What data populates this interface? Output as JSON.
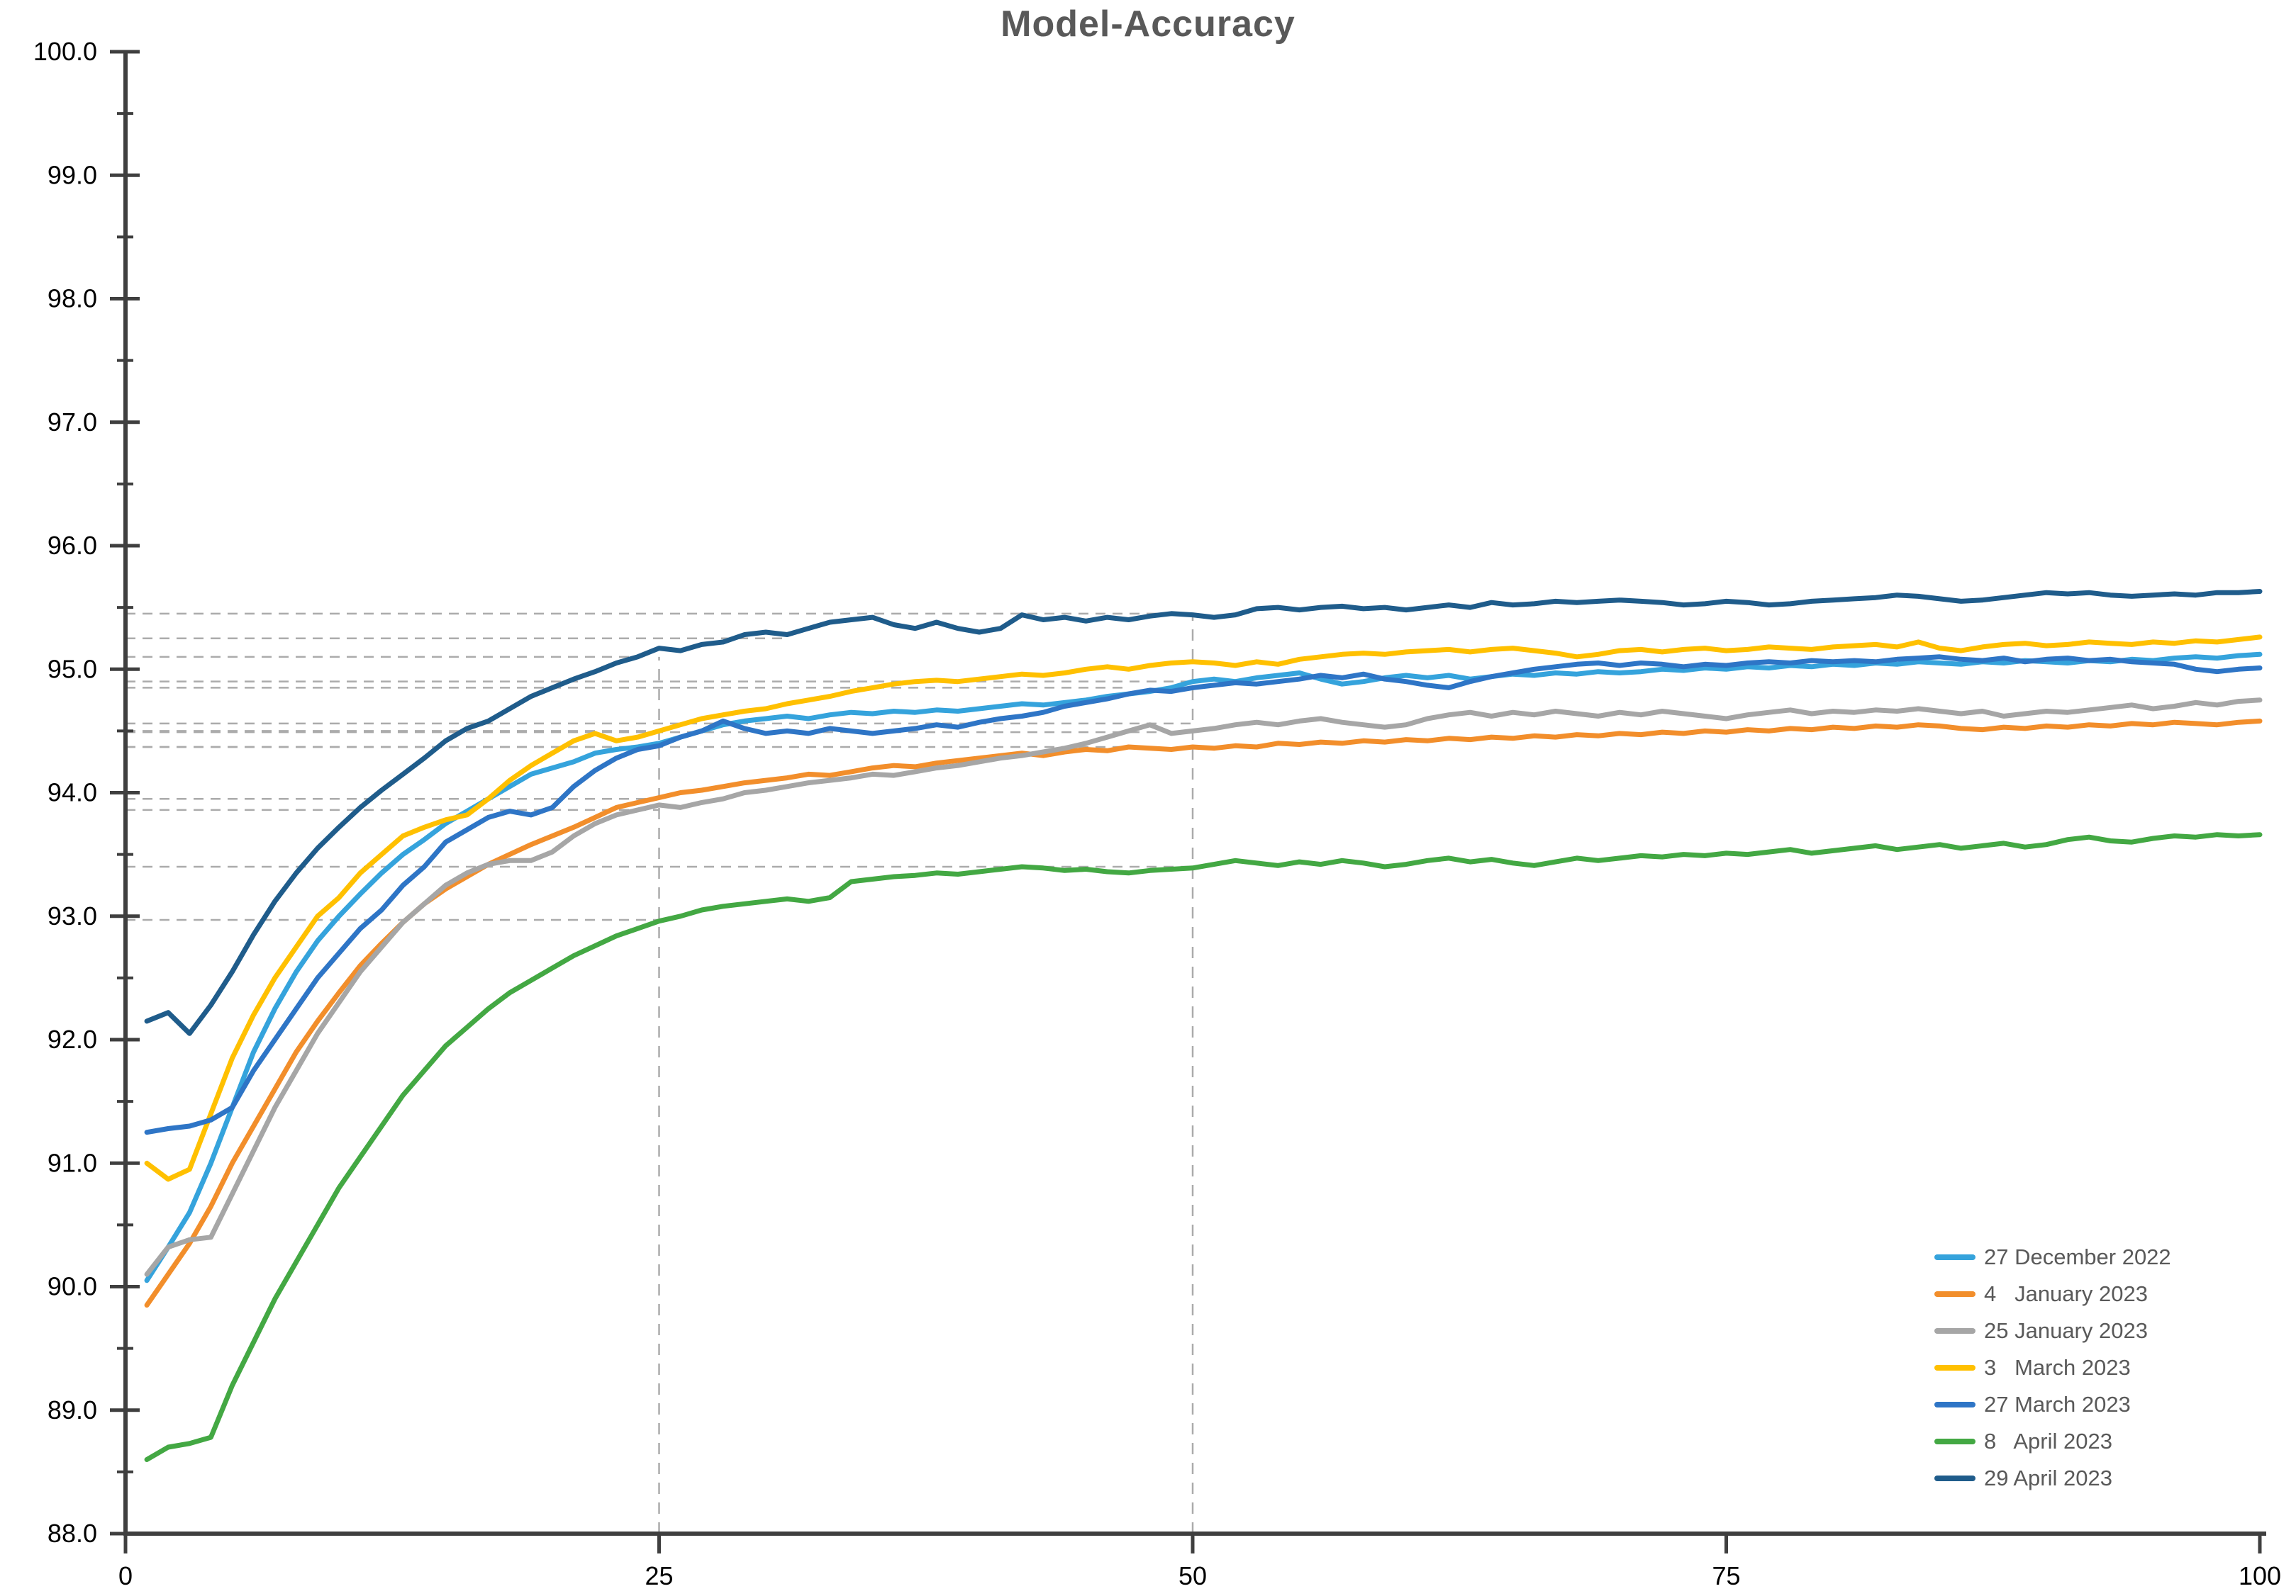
{
  "title": "Model-Accuracy",
  "chart_data": {
    "type": "line",
    "title": "Model-Accuracy",
    "xlabel": "",
    "ylabel": "",
    "xlim": [
      0,
      100
    ],
    "ylim": [
      88.0,
      100.0
    ],
    "x_ticks": [
      0,
      25,
      50,
      75,
      100
    ],
    "x_tick_labels": [
      "0",
      "25",
      "50",
      "75",
      "100"
    ],
    "y_tick_labels": [
      "100.0",
      "99.0",
      "98.0",
      "97.0",
      "96.0",
      "95.0",
      "94.0",
      "93.0",
      "92.0",
      "91.0",
      "90.0",
      "89.0",
      "88.0"
    ],
    "y_major_step": 1.0,
    "y_minor_step": 0.5,
    "grid": false,
    "legend_position": "bottom-right",
    "axis_color": "#3f3f3f",
    "tick_label_color": "#000000",
    "guide_color": "#ababab",
    "dashed_guides_horizontal": [
      {
        "y": 95.45,
        "x_end": 50
      },
      {
        "y": 95.25,
        "x_end": 31
      },
      {
        "y": 95.1,
        "x_end": 24
      },
      {
        "y": 94.9,
        "x_end": 50
      },
      {
        "y": 94.85,
        "x_end": 47
      },
      {
        "y": 94.56,
        "x_end": 50
      },
      {
        "y": 94.5,
        "x_end": 25
      },
      {
        "y": 94.49,
        "x_end": 49
      },
      {
        "y": 94.37,
        "x_end": 47
      },
      {
        "y": 94.37,
        "x_end": 25
      },
      {
        "y": 93.95,
        "x_end": 25
      },
      {
        "y": 93.86,
        "x_end": 25
      },
      {
        "y": 93.4,
        "x_end": 50
      },
      {
        "y": 92.97,
        "x_end": 25
      }
    ],
    "dashed_guides_vertical": [
      {
        "x": 25,
        "y_top": 95.1
      },
      {
        "x": 50,
        "y_top": 95.45
      }
    ],
    "x": "1..100",
    "series": [
      {
        "name": "27 December 2022",
        "color": "#35A3DC",
        "values": [
          90.05,
          90.32,
          90.6,
          91.0,
          91.45,
          91.9,
          92.25,
          92.55,
          92.8,
          93.0,
          93.18,
          93.35,
          93.5,
          93.62,
          93.75,
          93.85,
          93.95,
          94.05,
          94.15,
          94.2,
          94.25,
          94.32,
          94.35,
          94.37,
          94.4,
          94.45,
          94.5,
          94.55,
          94.58,
          94.6,
          94.62,
          94.6,
          94.63,
          94.65,
          94.64,
          94.66,
          94.65,
          94.67,
          94.66,
          94.68,
          94.7,
          94.72,
          94.71,
          94.73,
          94.75,
          94.78,
          94.8,
          94.82,
          94.85,
          94.9,
          94.92,
          94.9,
          94.93,
          94.95,
          94.97,
          94.92,
          94.88,
          94.9,
          94.93,
          94.95,
          94.93,
          94.95,
          94.92,
          94.94,
          94.96,
          94.95,
          94.97,
          94.96,
          94.98,
          94.97,
          94.98,
          95.0,
          94.99,
          95.01,
          95.0,
          95.02,
          95.01,
          95.03,
          95.02,
          95.04,
          95.03,
          95.05,
          95.04,
          95.06,
          95.05,
          95.04,
          95.06,
          95.05,
          95.07,
          95.06,
          95.05,
          95.07,
          95.06,
          95.08,
          95.07,
          95.09,
          95.1,
          95.09,
          95.11,
          95.12
        ]
      },
      {
        "name": "4   January 2023",
        "color": "#F28E2B",
        "values": [
          89.85,
          90.1,
          90.35,
          90.65,
          91.0,
          91.3,
          91.6,
          91.9,
          92.15,
          92.38,
          92.6,
          92.78,
          92.95,
          93.1,
          93.22,
          93.32,
          93.42,
          93.5,
          93.58,
          93.65,
          93.72,
          93.8,
          93.88,
          93.92,
          93.96,
          94.0,
          94.02,
          94.05,
          94.08,
          94.1,
          94.12,
          94.15,
          94.14,
          94.17,
          94.2,
          94.22,
          94.21,
          94.24,
          94.26,
          94.28,
          94.3,
          94.32,
          94.3,
          94.33,
          94.35,
          94.34,
          94.37,
          94.36,
          94.35,
          94.37,
          94.36,
          94.38,
          94.37,
          94.4,
          94.39,
          94.41,
          94.4,
          94.42,
          94.41,
          94.43,
          94.42,
          94.44,
          94.43,
          94.45,
          94.44,
          94.46,
          94.45,
          94.47,
          94.46,
          94.48,
          94.47,
          94.49,
          94.48,
          94.5,
          94.49,
          94.51,
          94.5,
          94.52,
          94.51,
          94.53,
          94.52,
          94.54,
          94.53,
          94.55,
          94.54,
          94.52,
          94.51,
          94.53,
          94.52,
          94.54,
          94.53,
          94.55,
          94.54,
          94.56,
          94.55,
          94.57,
          94.56,
          94.55,
          94.57,
          94.58
        ]
      },
      {
        "name": "25 January 2023",
        "color": "#A6A6A6",
        "values": [
          90.1,
          90.32,
          90.38,
          90.4,
          90.75,
          91.1,
          91.45,
          91.75,
          92.05,
          92.3,
          92.55,
          92.75,
          92.95,
          93.1,
          93.25,
          93.35,
          93.42,
          93.45,
          93.45,
          93.52,
          93.65,
          93.75,
          93.82,
          93.86,
          93.9,
          93.88,
          93.92,
          93.95,
          94.0,
          94.02,
          94.05,
          94.08,
          94.1,
          94.12,
          94.15,
          94.14,
          94.17,
          94.2,
          94.22,
          94.25,
          94.28,
          94.3,
          94.33,
          94.36,
          94.4,
          94.45,
          94.5,
          94.55,
          94.48,
          94.5,
          94.52,
          94.55,
          94.57,
          94.55,
          94.58,
          94.6,
          94.57,
          94.55,
          94.53,
          94.55,
          94.6,
          94.63,
          94.65,
          94.62,
          94.65,
          94.63,
          94.66,
          94.64,
          94.62,
          94.65,
          94.63,
          94.66,
          94.64,
          94.62,
          94.6,
          94.63,
          94.65,
          94.67,
          94.64,
          94.66,
          94.65,
          94.67,
          94.66,
          94.68,
          94.66,
          94.64,
          94.66,
          94.62,
          94.64,
          94.66,
          94.65,
          94.67,
          94.69,
          94.71,
          94.68,
          94.7,
          94.73,
          94.71,
          94.74,
          94.75
        ]
      },
      {
        "name": "3   March 2023",
        "color": "#FFC000",
        "values": [
          91.0,
          90.87,
          90.95,
          91.4,
          91.85,
          92.2,
          92.5,
          92.75,
          93.0,
          93.15,
          93.35,
          93.5,
          93.65,
          93.72,
          93.78,
          93.82,
          93.95,
          94.1,
          94.22,
          94.32,
          94.42,
          94.48,
          94.42,
          94.45,
          94.5,
          94.55,
          94.6,
          94.63,
          94.66,
          94.68,
          94.72,
          94.75,
          94.78,
          94.82,
          94.85,
          94.88,
          94.9,
          94.91,
          94.9,
          94.92,
          94.94,
          94.96,
          94.95,
          94.97,
          95.0,
          95.02,
          95.0,
          95.03,
          95.05,
          95.06,
          95.05,
          95.03,
          95.06,
          95.04,
          95.08,
          95.1,
          95.12,
          95.13,
          95.12,
          95.14,
          95.15,
          95.16,
          95.14,
          95.16,
          95.17,
          95.15,
          95.13,
          95.1,
          95.12,
          95.15,
          95.16,
          95.14,
          95.16,
          95.17,
          95.15,
          95.16,
          95.18,
          95.17,
          95.16,
          95.18,
          95.19,
          95.2,
          95.18,
          95.22,
          95.17,
          95.15,
          95.18,
          95.2,
          95.21,
          95.19,
          95.2,
          95.22,
          95.21,
          95.2,
          95.22,
          95.21,
          95.23,
          95.22,
          95.24,
          95.26
        ]
      },
      {
        "name": "27 March 2023",
        "color": "#2E75C6",
        "values": [
          91.25,
          91.28,
          91.3,
          91.35,
          91.45,
          91.75,
          92.0,
          92.25,
          92.5,
          92.7,
          92.9,
          93.05,
          93.25,
          93.4,
          93.6,
          93.7,
          93.8,
          93.85,
          93.82,
          93.88,
          94.05,
          94.18,
          94.28,
          94.35,
          94.38,
          94.45,
          94.5,
          94.58,
          94.52,
          94.48,
          94.5,
          94.48,
          94.52,
          94.5,
          94.48,
          94.5,
          94.52,
          94.55,
          94.53,
          94.57,
          94.6,
          94.62,
          94.65,
          94.7,
          94.73,
          94.76,
          94.8,
          94.83,
          94.82,
          94.85,
          94.87,
          94.89,
          94.88,
          94.9,
          94.92,
          94.95,
          94.93,
          94.96,
          94.92,
          94.9,
          94.87,
          94.85,
          94.9,
          94.94,
          94.97,
          95.0,
          95.02,
          95.04,
          95.05,
          95.03,
          95.05,
          95.04,
          95.02,
          95.04,
          95.03,
          95.05,
          95.06,
          95.05,
          95.07,
          95.06,
          95.07,
          95.06,
          95.08,
          95.09,
          95.1,
          95.08,
          95.07,
          95.09,
          95.06,
          95.08,
          95.09,
          95.07,
          95.08,
          95.06,
          95.05,
          95.04,
          95.0,
          94.98,
          95.0,
          95.01
        ]
      },
      {
        "name": "8   April 2023",
        "color": "#43A843",
        "values": [
          88.6,
          88.7,
          88.73,
          88.78,
          89.2,
          89.55,
          89.9,
          90.2,
          90.5,
          90.8,
          91.05,
          91.3,
          91.55,
          91.75,
          91.95,
          92.1,
          92.25,
          92.38,
          92.48,
          92.58,
          92.68,
          92.76,
          92.84,
          92.9,
          92.96,
          93.0,
          93.05,
          93.08,
          93.1,
          93.12,
          93.14,
          93.12,
          93.15,
          93.28,
          93.3,
          93.32,
          93.33,
          93.35,
          93.34,
          93.36,
          93.38,
          93.4,
          93.39,
          93.37,
          93.38,
          93.36,
          93.35,
          93.37,
          93.38,
          93.39,
          93.42,
          93.45,
          93.43,
          93.41,
          93.44,
          93.42,
          93.45,
          93.43,
          93.4,
          93.42,
          93.45,
          93.47,
          93.44,
          93.46,
          93.43,
          93.41,
          93.44,
          93.47,
          93.45,
          93.47,
          93.49,
          93.48,
          93.5,
          93.49,
          93.51,
          93.5,
          93.52,
          93.54,
          93.51,
          93.53,
          93.55,
          93.57,
          93.54,
          93.56,
          93.58,
          93.55,
          93.57,
          93.59,
          93.56,
          93.58,
          93.62,
          93.64,
          93.61,
          93.6,
          93.63,
          93.65,
          93.64,
          93.66,
          93.65,
          93.66
        ]
      },
      {
        "name": "29 April 2023",
        "color": "#1F5C8B",
        "values": [
          92.15,
          92.22,
          92.05,
          92.28,
          92.55,
          92.85,
          93.12,
          93.35,
          93.55,
          93.72,
          93.88,
          94.02,
          94.15,
          94.28,
          94.42,
          94.52,
          94.58,
          94.68,
          94.78,
          94.85,
          94.92,
          94.98,
          95.05,
          95.1,
          95.17,
          95.15,
          95.2,
          95.22,
          95.28,
          95.3,
          95.28,
          95.33,
          95.38,
          95.4,
          95.42,
          95.36,
          95.33,
          95.38,
          95.33,
          95.3,
          95.33,
          95.44,
          95.4,
          95.42,
          95.39,
          95.42,
          95.4,
          95.43,
          95.45,
          95.44,
          95.42,
          95.44,
          95.49,
          95.5,
          95.48,
          95.5,
          95.51,
          95.49,
          95.5,
          95.48,
          95.5,
          95.52,
          95.5,
          95.54,
          95.52,
          95.53,
          95.55,
          95.54,
          95.55,
          95.56,
          95.55,
          95.54,
          95.52,
          95.53,
          95.55,
          95.54,
          95.52,
          95.53,
          95.55,
          95.56,
          95.57,
          95.58,
          95.6,
          95.59,
          95.57,
          95.55,
          95.56,
          95.58,
          95.6,
          95.62,
          95.61,
          95.62,
          95.6,
          95.59,
          95.6,
          95.61,
          95.6,
          95.62,
          95.62,
          95.63
        ]
      }
    ]
  },
  "legend": {
    "items": [
      {
        "label": "27 December 2022"
      },
      {
        "label": "4   January 2023"
      },
      {
        "label": "25 January 2023"
      },
      {
        "label": "3   March 2023"
      },
      {
        "label": "27 March 2023"
      },
      {
        "label": "8   April 2023"
      },
      {
        "label": "29 April 2023"
      }
    ]
  }
}
